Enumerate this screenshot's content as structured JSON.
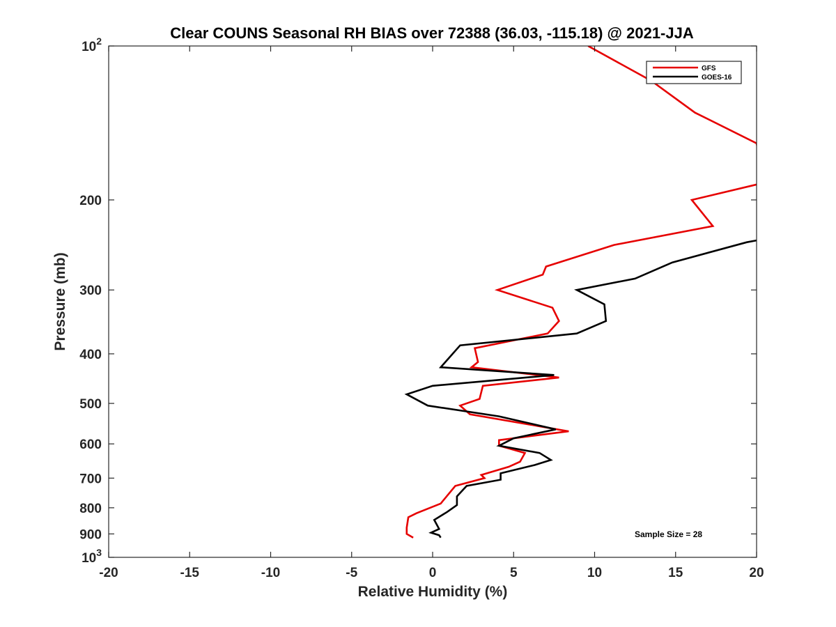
{
  "chart_data": {
    "type": "line",
    "title": "Clear COUNS Seasonal RH BIAS over 72388 (36.03, -115.18) @ 2021-JJA",
    "xlabel": "Relative Humidity (%)",
    "ylabel": "Pressure (mb)",
    "xlim": [
      -20,
      20
    ],
    "ylim": [
      100,
      1000
    ],
    "y_scale": "log",
    "y_reversed": true,
    "x_ticks": [
      "-20",
      "-15",
      "-10",
      "-5",
      "0",
      "5",
      "10",
      "15",
      "20"
    ],
    "x_tick_values": [
      -20,
      -15,
      -10,
      -5,
      0,
      5,
      10,
      15,
      20
    ],
    "y_ticks": [
      {
        "value": 100,
        "base": "10",
        "exp": "2"
      },
      {
        "value": 200,
        "label": "200"
      },
      {
        "value": 300,
        "label": "300"
      },
      {
        "value": 400,
        "label": "400"
      },
      {
        "value": 500,
        "label": "500"
      },
      {
        "value": 600,
        "label": "600"
      },
      {
        "value": 700,
        "label": "700"
      },
      {
        "value": 800,
        "label": "800"
      },
      {
        "value": 900,
        "label": "900"
      },
      {
        "value": 1000,
        "base": "10",
        "exp": "3"
      }
    ],
    "series": [
      {
        "name": "GFS",
        "color": "#e60000",
        "points": [
          {
            "x": 9.6,
            "p": 100
          },
          {
            "x": 13.5,
            "p": 117
          },
          {
            "x": 16.2,
            "p": 135
          },
          {
            "x": 20.0,
            "p": 155
          },
          {
            "x": 20.5,
            "p": 185
          },
          {
            "x": 16.0,
            "p": 200
          },
          {
            "x": 17.3,
            "p": 225
          },
          {
            "x": 11.2,
            "p": 245
          },
          {
            "x": 7.0,
            "p": 270
          },
          {
            "x": 6.8,
            "p": 280
          },
          {
            "x": 4.0,
            "p": 300
          },
          {
            "x": 7.4,
            "p": 325
          },
          {
            "x": 7.8,
            "p": 345
          },
          {
            "x": 7.1,
            "p": 365
          },
          {
            "x": 2.6,
            "p": 390
          },
          {
            "x": 2.8,
            "p": 415
          },
          {
            "x": 2.4,
            "p": 425
          },
          {
            "x": 7.8,
            "p": 445
          },
          {
            "x": 3.1,
            "p": 462
          },
          {
            "x": 2.9,
            "p": 490
          },
          {
            "x": 1.7,
            "p": 505
          },
          {
            "x": 2.3,
            "p": 525
          },
          {
            "x": 6.7,
            "p": 555
          },
          {
            "x": 8.4,
            "p": 567
          },
          {
            "x": 4.1,
            "p": 590
          },
          {
            "x": 4.1,
            "p": 605
          },
          {
            "x": 5.7,
            "p": 625
          },
          {
            "x": 5.4,
            "p": 650
          },
          {
            "x": 4.7,
            "p": 665
          },
          {
            "x": 3.0,
            "p": 690
          },
          {
            "x": 3.2,
            "p": 700
          },
          {
            "x": 1.4,
            "p": 725
          },
          {
            "x": 0.5,
            "p": 785
          },
          {
            "x": -1.0,
            "p": 820
          },
          {
            "x": -1.5,
            "p": 835
          },
          {
            "x": -1.6,
            "p": 875
          },
          {
            "x": -1.6,
            "p": 900
          },
          {
            "x": -1.2,
            "p": 915
          }
        ]
      },
      {
        "name": "GOES-16",
        "color": "#000000",
        "points": [
          {
            "x": 20.0,
            "p": 240
          },
          {
            "x": 19.4,
            "p": 242
          },
          {
            "x": 14.8,
            "p": 265
          },
          {
            "x": 12.5,
            "p": 285
          },
          {
            "x": 8.9,
            "p": 300
          },
          {
            "x": 10.6,
            "p": 320
          },
          {
            "x": 10.7,
            "p": 345
          },
          {
            "x": 8.9,
            "p": 365
          },
          {
            "x": 1.7,
            "p": 385
          },
          {
            "x": 0.5,
            "p": 425
          },
          {
            "x": 7.5,
            "p": 440
          },
          {
            "x": 0.0,
            "p": 462
          },
          {
            "x": -1.6,
            "p": 480
          },
          {
            "x": -0.3,
            "p": 505
          },
          {
            "x": 4.1,
            "p": 530
          },
          {
            "x": 7.6,
            "p": 562
          },
          {
            "x": 5.0,
            "p": 585
          },
          {
            "x": 4.1,
            "p": 605
          },
          {
            "x": 6.6,
            "p": 625
          },
          {
            "x": 7.3,
            "p": 645
          },
          {
            "x": 6.3,
            "p": 660
          },
          {
            "x": 4.2,
            "p": 685
          },
          {
            "x": 4.2,
            "p": 705
          },
          {
            "x": 2.1,
            "p": 725
          },
          {
            "x": 1.5,
            "p": 760
          },
          {
            "x": 1.5,
            "p": 790
          },
          {
            "x": 0.9,
            "p": 815
          },
          {
            "x": 0.1,
            "p": 845
          },
          {
            "x": 0.4,
            "p": 880
          },
          {
            "x": -0.1,
            "p": 895
          },
          {
            "x": 0.4,
            "p": 905
          },
          {
            "x": 0.5,
            "p": 915
          }
        ]
      }
    ],
    "legend_position": "top-right",
    "annotation": "Sample Size = 28"
  }
}
